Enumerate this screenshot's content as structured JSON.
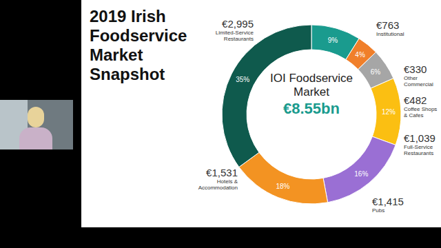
{
  "chart_data": {
    "type": "donut",
    "title": "2019 Irish Foodservice Market Snapshot",
    "categories": [
      "Institutional",
      "Other Commercial",
      "Coffee Shops & Cafes",
      "Full-Service Restaurants",
      "Pubs",
      "Hotels & Accommodation",
      "Limited-Service Restaurants"
    ],
    "values": [
      763,
      330,
      482,
      1039,
      1415,
      1531,
      2995
    ],
    "value_labels": [
      "€763",
      "€330",
      "€482",
      "€1,039",
      "€1,415",
      "€1,531",
      "€2,995"
    ],
    "percents": [
      9,
      4,
      6,
      12,
      16,
      18,
      35
    ],
    "percent_labels": [
      "9%",
      "4%",
      "6%",
      "12%",
      "16%",
      "18%",
      "35%"
    ],
    "colors": [
      "#1a9b8e",
      "#f07f2a",
      "#a6a6a6",
      "#fbbf12",
      "#9a6fd4",
      "#f39322",
      "#0f5a4d"
    ],
    "data_labels": true,
    "annotations": [
      {
        "text": "IOI Foodservice Market"
      },
      {
        "text": "€8.55bn"
      }
    ]
  }
}
